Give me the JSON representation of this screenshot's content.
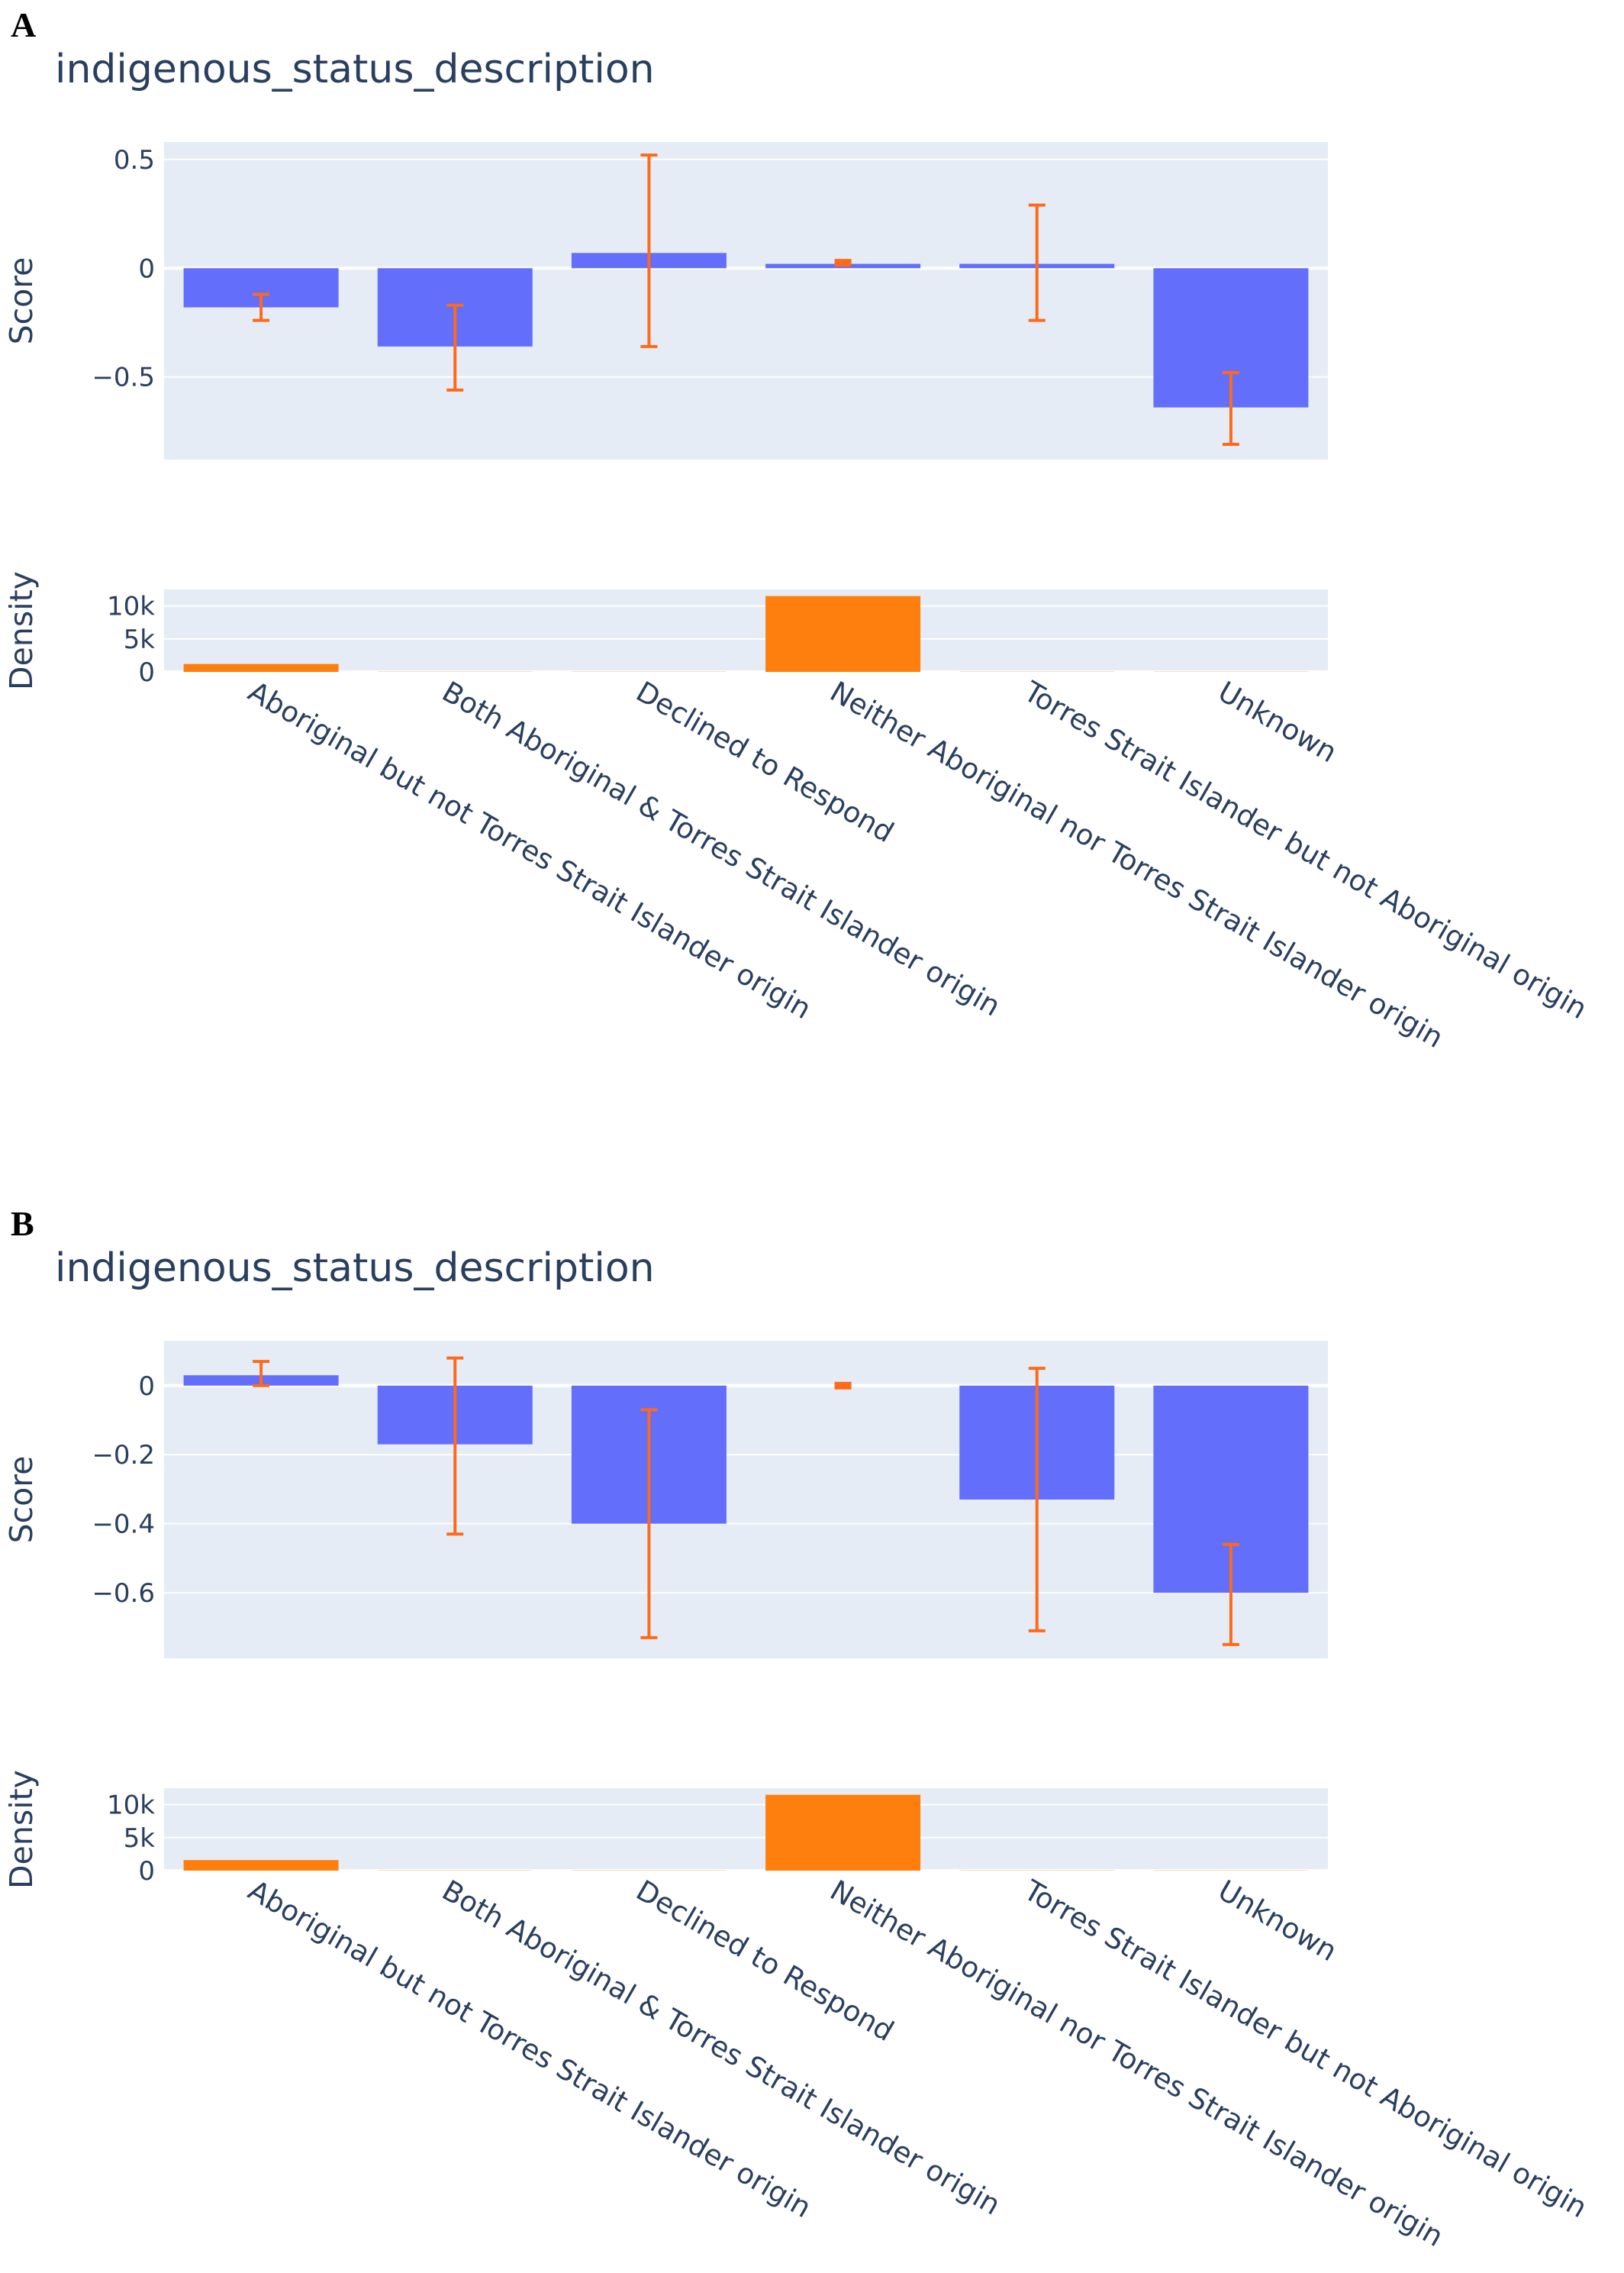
{
  "colors": {
    "plot_bg": "#e5ecf6",
    "grid": "#ffffff",
    "score_bar": "#636efa",
    "error_bar": "#ff6a1a",
    "density_bar": "#ff7f0e",
    "text": "#2a3f5f"
  },
  "chart_data": [
    {
      "panel": "A",
      "type": "bar",
      "title": "indigenous_status_description",
      "categories": [
        "Aboriginal but not Torres Strait Islander origin",
        "Both Aboriginal & Torres Strait Islander origin",
        "Declined to Respond",
        "Neither Aboriginal nor Torres Strait Islander origin",
        "Torres Strait Islander but not Aboriginal origin",
        "Unknown"
      ],
      "score": {
        "ylabel": "Score",
        "ylim": [
          -0.88,
          0.58
        ],
        "ticks": [
          {
            "v": 0.5,
            "label": "0.5"
          },
          {
            "v": 0,
            "label": "0"
          },
          {
            "v": -0.5,
            "label": "−0.5"
          }
        ],
        "values": [
          -0.18,
          -0.36,
          0.07,
          0.02,
          0.02,
          -0.64
        ],
        "error_low": [
          -0.24,
          -0.56,
          -0.36,
          0.02,
          -0.24,
          -0.81
        ],
        "error_high": [
          -0.12,
          -0.17,
          0.52,
          0.03,
          0.29,
          -0.48
        ]
      },
      "density": {
        "ylabel": "Density",
        "ylim": [
          0,
          12500
        ],
        "ticks": [
          {
            "v": 10000,
            "label": "10k"
          },
          {
            "v": 5000,
            "label": "5k"
          },
          {
            "v": 0,
            "label": "0"
          }
        ],
        "values": [
          1200,
          30,
          30,
          11500,
          30,
          30
        ]
      }
    },
    {
      "panel": "B",
      "type": "bar",
      "title": "indigenous_status_description",
      "categories": [
        "Aboriginal but not Torres Strait Islander origin",
        "Both Aboriginal & Torres Strait Islander origin",
        "Declined to Respond",
        "Neither Aboriginal nor Torres Strait Islander origin",
        "Torres Strait Islander but not Aboriginal origin",
        "Unknown"
      ],
      "score": {
        "ylabel": "Score",
        "ylim": [
          -0.79,
          0.13
        ],
        "ticks": [
          {
            "v": 0,
            "label": "0"
          },
          {
            "v": -0.2,
            "label": "−0.2"
          },
          {
            "v": -0.4,
            "label": "−0.4"
          },
          {
            "v": -0.6,
            "label": "−0.6"
          }
        ],
        "values": [
          0.03,
          -0.17,
          -0.4,
          0.0,
          -0.33,
          -0.6
        ],
        "error_low": [
          0.0,
          -0.43,
          -0.73,
          -0.01,
          -0.71,
          -0.75
        ],
        "error_high": [
          0.07,
          0.08,
          -0.07,
          0.01,
          0.05,
          -0.46
        ]
      },
      "density": {
        "ylabel": "Density",
        "ylim": [
          0,
          12500
        ],
        "ticks": [
          {
            "v": 10000,
            "label": "10k"
          },
          {
            "v": 5000,
            "label": "5k"
          },
          {
            "v": 0,
            "label": "0"
          }
        ],
        "values": [
          1600,
          30,
          30,
          11500,
          30,
          30
        ]
      }
    }
  ]
}
